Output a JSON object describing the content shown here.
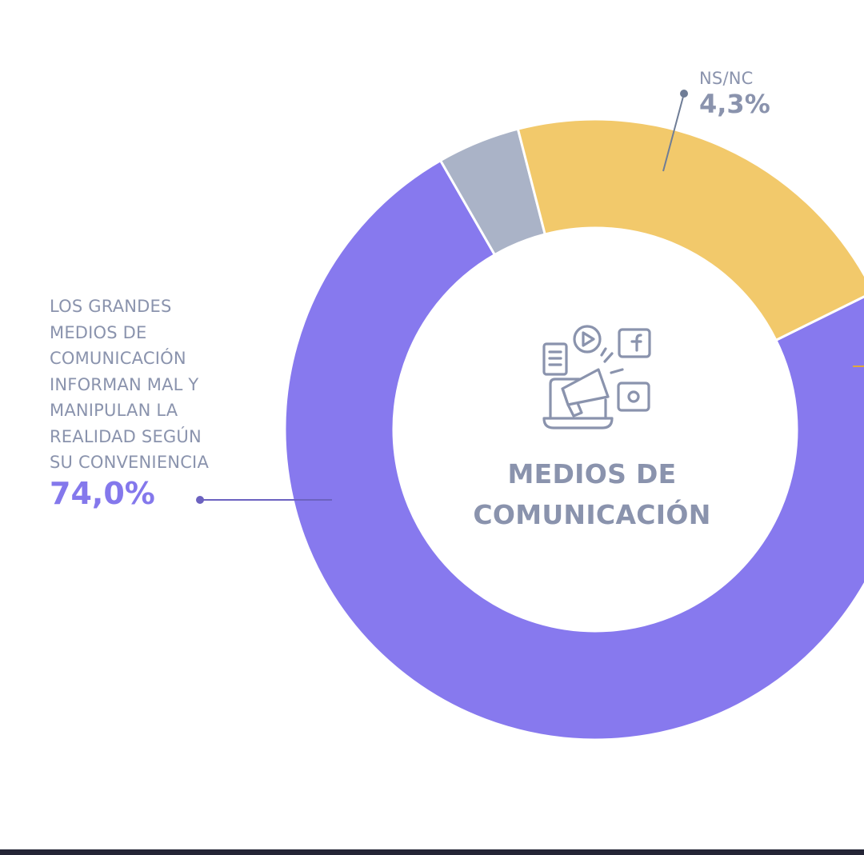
{
  "chart_data": {
    "type": "pie",
    "donut": true,
    "center_title": "MEDIOS DE\nCOMUNICACIÓN",
    "slices": [
      {
        "label": "LOS GRANDES\nMEDIOS DE\nCOMUNICACIÓN\nINFORMAN MAL Y\nMANIPULAN LA\nREALIDAD SEGÚN\nSU CONVENIENCIA",
        "value": 74.0,
        "value_text": "74,0%",
        "color": "#8779ee"
      },
      {
        "label": "NS/NC",
        "value": 4.3,
        "value_text": "4,3%",
        "color": "#aab3c7"
      },
      {
        "label": "",
        "value": 21.7,
        "color": "#f2c96b"
      }
    ]
  },
  "colors": {
    "label_text": "#8a93ad",
    "accent_value": "#8478ec",
    "leader_line_left": "#6c62c0",
    "leader_line_top": "#6f7d96",
    "bottom_bar": "#242536"
  },
  "icons": {
    "center": "megaphone-social-media-icon"
  }
}
